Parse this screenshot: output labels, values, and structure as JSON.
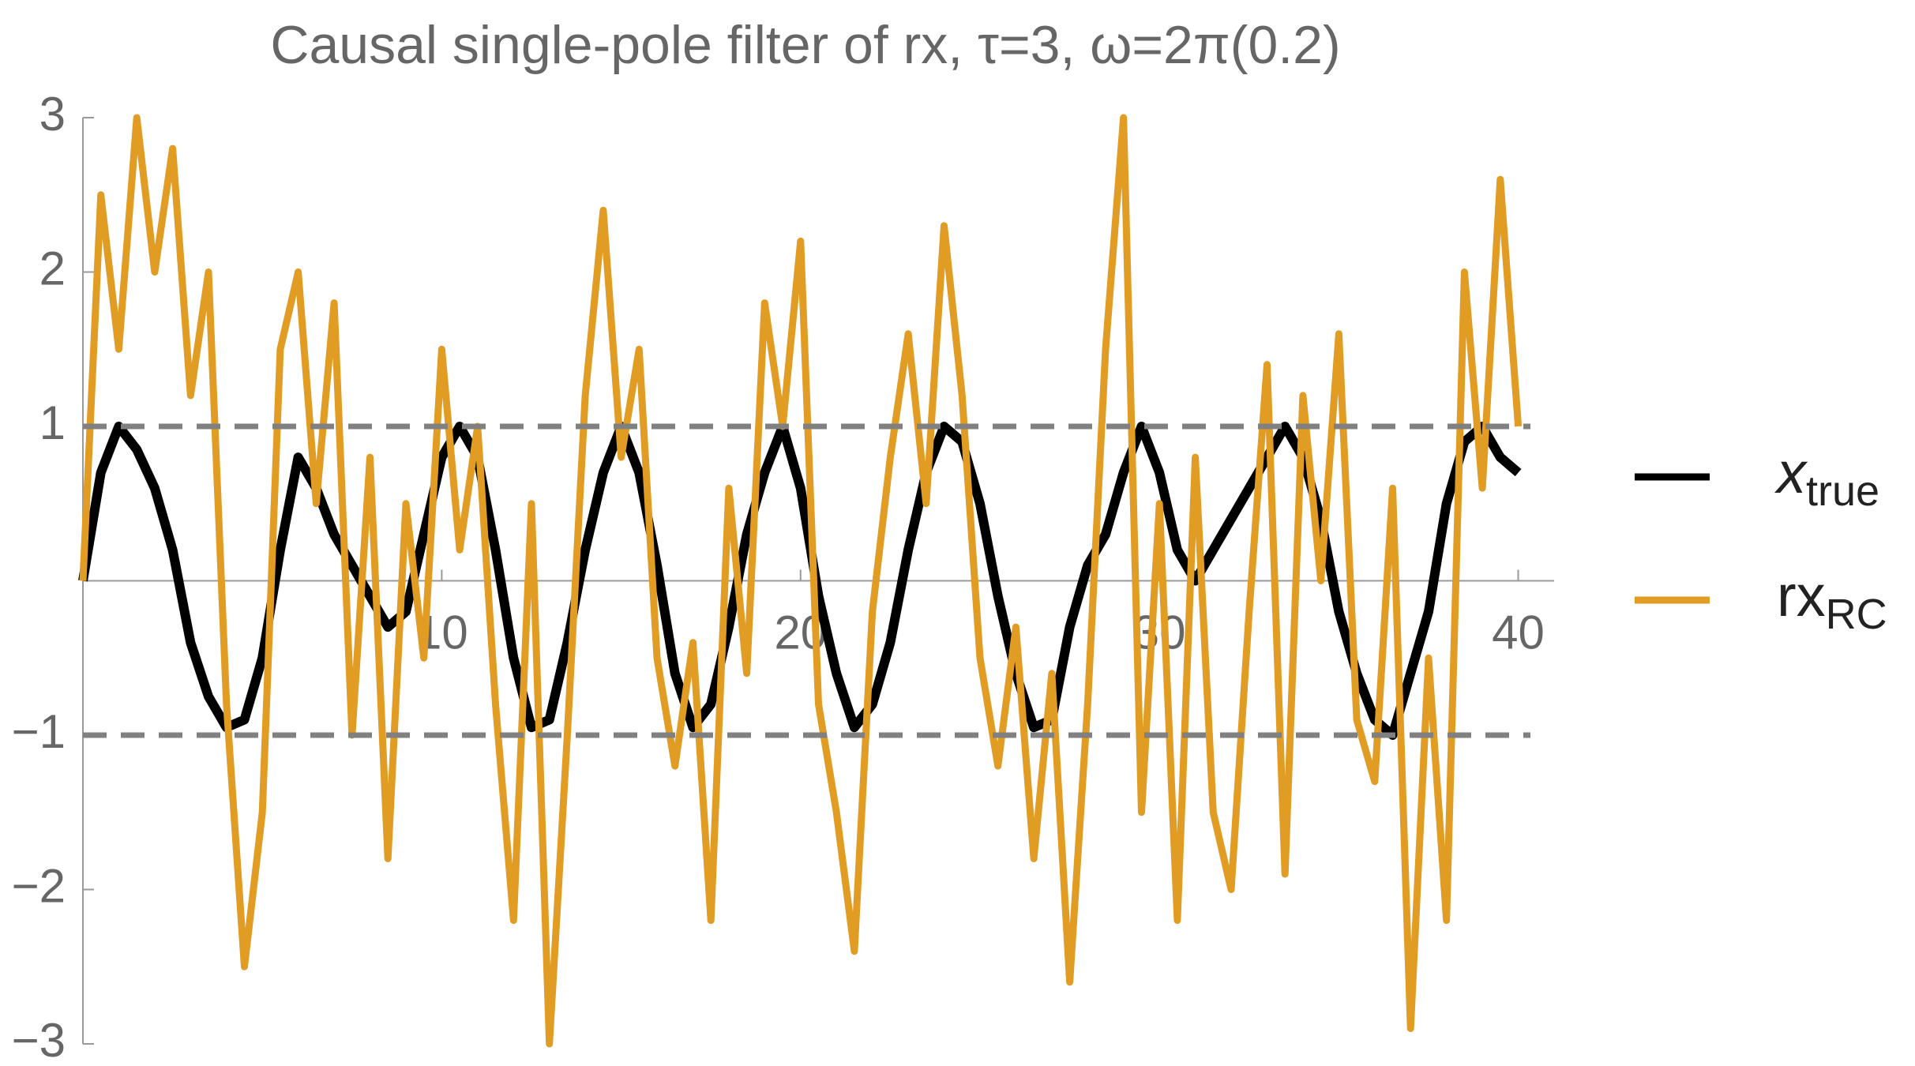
{
  "chart_data": {
    "type": "line",
    "title": "Causal single-pole filter of rx, τ=3, ω=2π(0.2)",
    "x": [
      0,
      0.5,
      1,
      1.5,
      2,
      2.5,
      3,
      3.5,
      4,
      4.5,
      5,
      5.5,
      6,
      6.5,
      7,
      7.5,
      8,
      8.5,
      9,
      9.5,
      10,
      10.5,
      11,
      11.5,
      12,
      12.5,
      13,
      13.5,
      14,
      14.5,
      15,
      15.5,
      16,
      16.5,
      17,
      17.5,
      18,
      18.5,
      19,
      19.5,
      20,
      20.5,
      21,
      21.5,
      22,
      22.5,
      23,
      23.5,
      24,
      24.5,
      25,
      25.5,
      26,
      26.5,
      27,
      27.5,
      28,
      28.5,
      29,
      29.5,
      30,
      30.5,
      31,
      31.5,
      32,
      32.5,
      33,
      33.5,
      34,
      34.5,
      35,
      35.5,
      36,
      36.5,
      37,
      37.5,
      38,
      38.5,
      39,
      39.5,
      40
    ],
    "series": [
      {
        "name": "x",
        "name_subscript": "true",
        "color": "#000000",
        "values": [
          0,
          0.7,
          1.0,
          0.85,
          0.6,
          0.2,
          -0.4,
          -0.75,
          -0.95,
          -0.9,
          -0.5,
          0.2,
          0.8,
          0.6,
          0.3,
          0.1,
          -0.1,
          -0.3,
          -0.2,
          0.3,
          0.8,
          1.0,
          0.8,
          0.2,
          -0.5,
          -0.95,
          -0.9,
          -0.4,
          0.2,
          0.7,
          1.0,
          0.7,
          0.1,
          -0.6,
          -0.95,
          -0.8,
          -0.3,
          0.3,
          0.7,
          1.0,
          0.6,
          -0.1,
          -0.6,
          -0.95,
          -0.8,
          -0.4,
          0.2,
          0.7,
          1.0,
          0.9,
          0.5,
          -0.1,
          -0.6,
          -0.95,
          -0.9,
          -0.3,
          0.1,
          0.3,
          0.7,
          1.0,
          0.7,
          0.2,
          0.0,
          0.2,
          0.4,
          0.6,
          0.8,
          1.0,
          0.8,
          0.4,
          -0.2,
          -0.6,
          -0.9,
          -1.0,
          -0.6,
          -0.2,
          0.5,
          0.9,
          1.0,
          0.8,
          0.7
        ]
      },
      {
        "name": "rx",
        "name_subscript": "RC",
        "color": "#e19c24",
        "values": [
          0,
          2.5,
          1.5,
          3.0,
          2.0,
          2.8,
          1.2,
          2.0,
          -0.8,
          -2.5,
          -1.5,
          1.5,
          2.0,
          0.5,
          1.8,
          -1.0,
          0.8,
          -1.8,
          0.5,
          -0.5,
          1.5,
          0.2,
          1.0,
          -0.8,
          -2.2,
          0.5,
          -3.0,
          -1.0,
          1.2,
          2.4,
          0.8,
          1.5,
          -0.5,
          -1.2,
          -0.4,
          -2.2,
          0.6,
          -0.6,
          1.8,
          1.0,
          2.2,
          -0.8,
          -1.5,
          -2.4,
          -0.2,
          0.8,
          1.6,
          0.5,
          2.3,
          1.2,
          -0.5,
          -1.2,
          -0.3,
          -1.8,
          -0.6,
          -2.6,
          -0.8,
          1.5,
          3.0,
          -1.5,
          0.5,
          -2.2,
          0.8,
          -1.5,
          -2.0,
          -0.2,
          1.4,
          -1.9,
          1.2,
          0.0,
          1.6,
          -0.9,
          -1.3,
          0.6,
          -2.9,
          -0.5,
          -2.2,
          2.0,
          0.6,
          2.6,
          1.0
        ]
      }
    ],
    "xlim": [
      0,
      41
    ],
    "ylim": [
      -3,
      3
    ],
    "xticks": [
      10,
      20,
      30,
      40
    ],
    "yticks": [
      {
        "value": -3,
        "label": "−3"
      },
      {
        "value": -2,
        "label": "−2"
      },
      {
        "value": -1,
        "label": "−1"
      },
      1,
      2,
      3
    ],
    "reference_lines": [
      1,
      -1
    ],
    "reference_color": "#808080",
    "grid": false,
    "legend": "right"
  }
}
